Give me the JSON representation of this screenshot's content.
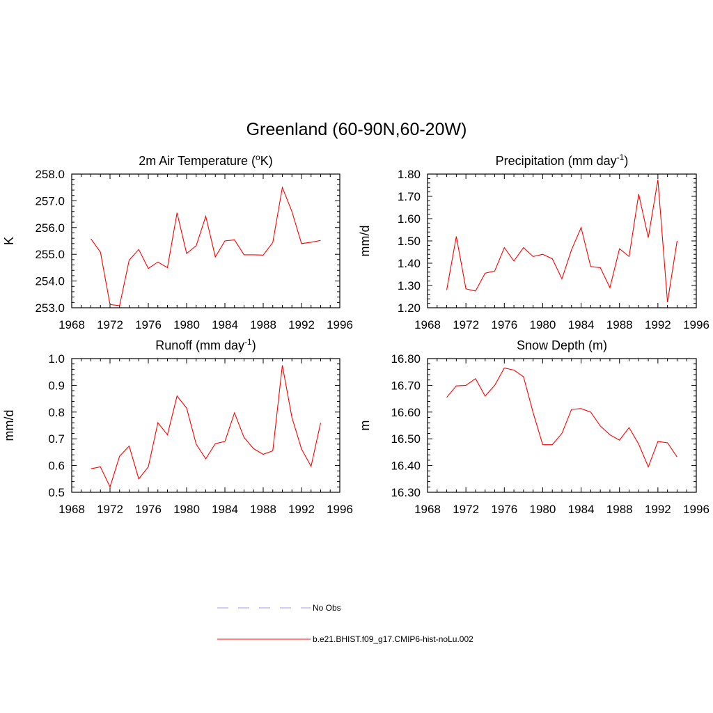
{
  "figure": {
    "title": "Greenland (60-90N,60-20W)"
  },
  "legend": {
    "items": [
      {
        "label": "No Obs",
        "color": "#9999ff",
        "dashed": true
      },
      {
        "label": "b.e21.BHIST.f09_g17.CMIP6-hist-noLu.002",
        "color": "#ff0000",
        "dashed": false
      }
    ]
  },
  "chart_data": [
    {
      "type": "line",
      "title": "2m Air Temperature (oK)",
      "title_parts": {
        "pre": "2m Air Temperature (",
        "sup": "o",
        "post": "K)"
      },
      "ylabel": "K",
      "xlabel": "",
      "xlim": [
        1968,
        1996
      ],
      "ylim": [
        253.0,
        258.0
      ],
      "x_ticks": [
        "1968",
        "1972",
        "1976",
        "1980",
        "1984",
        "1988",
        "1992",
        "1996"
      ],
      "y_ticks": [
        "253.0",
        "254.0",
        "255.0",
        "256.0",
        "257.0",
        "258.0"
      ],
      "series": [
        {
          "color": "#ff0000",
          "x": [
            1970,
            1971,
            1972,
            1973,
            1974,
            1975,
            1976,
            1977,
            1978,
            1979,
            1980,
            1981,
            1982,
            1983,
            1984,
            1985,
            1986,
            1987,
            1988,
            1989,
            1990,
            1991,
            1992,
            1993,
            1994
          ],
          "y": [
            255.58,
            255.08,
            253.12,
            253.08,
            254.78,
            255.18,
            254.47,
            254.71,
            254.5,
            256.55,
            255.03,
            255.32,
            256.42,
            254.9,
            255.5,
            255.54,
            254.98,
            254.98,
            254.97,
            255.44,
            257.5,
            256.6,
            255.4,
            255.45,
            255.52
          ]
        }
      ]
    },
    {
      "type": "line",
      "title": "Precipitation (mm day-1)",
      "title_parts": {
        "pre": "Precipitation (mm day",
        "sup": "-1",
        "post": ")"
      },
      "ylabel": "mm/d",
      "xlabel": "",
      "xlim": [
        1968,
        1996
      ],
      "ylim": [
        1.2,
        1.8
      ],
      "x_ticks": [
        "1968",
        "1972",
        "1976",
        "1980",
        "1984",
        "1988",
        "1992",
        "1996"
      ],
      "y_ticks": [
        "1.20",
        "1.30",
        "1.40",
        "1.50",
        "1.60",
        "1.70",
        "1.80"
      ],
      "series": [
        {
          "color": "#ff0000",
          "x": [
            1970,
            1971,
            1972,
            1973,
            1974,
            1975,
            1976,
            1977,
            1978,
            1979,
            1980,
            1981,
            1982,
            1983,
            1984,
            1985,
            1986,
            1987,
            1988,
            1989,
            1990,
            1991,
            1992,
            1993,
            1994
          ],
          "y": [
            1.28,
            1.52,
            1.285,
            1.275,
            1.355,
            1.365,
            1.47,
            1.41,
            1.47,
            1.43,
            1.44,
            1.42,
            1.33,
            1.46,
            1.56,
            1.385,
            1.38,
            1.29,
            1.465,
            1.43,
            1.71,
            1.515,
            1.775,
            1.225,
            1.5
          ]
        }
      ]
    },
    {
      "type": "line",
      "title": "Runoff (mm day-1)",
      "title_parts": {
        "pre": "Runoff (mm day",
        "sup": "-1",
        "post": ")"
      },
      "ylabel": "mm/d",
      "xlabel": "",
      "xlim": [
        1968,
        1996
      ],
      "ylim": [
        0.5,
        1.0
      ],
      "x_ticks": [
        "1968",
        "1972",
        "1976",
        "1980",
        "1984",
        "1988",
        "1992",
        "1996"
      ],
      "y_ticks": [
        "0.5",
        "0.6",
        "0.7",
        "0.8",
        "0.9",
        "1.0"
      ],
      "series": [
        {
          "color": "#ff0000",
          "x": [
            1970,
            1971,
            1972,
            1973,
            1974,
            1975,
            1976,
            1977,
            1978,
            1979,
            1980,
            1981,
            1982,
            1983,
            1984,
            1985,
            1986,
            1987,
            1988,
            1989,
            1990,
            1991,
            1992,
            1993,
            1994
          ],
          "y": [
            0.588,
            0.595,
            0.52,
            0.635,
            0.673,
            0.55,
            0.595,
            0.76,
            0.715,
            0.86,
            0.815,
            0.68,
            0.625,
            0.682,
            0.69,
            0.797,
            0.705,
            0.663,
            0.642,
            0.655,
            0.975,
            0.78,
            0.662,
            0.597,
            0.76
          ]
        }
      ]
    },
    {
      "type": "line",
      "title": "Snow Depth (m)",
      "title_parts": {
        "pre": "Snow Depth (m)",
        "sup": "",
        "post": ""
      },
      "ylabel": "m",
      "xlabel": "",
      "xlim": [
        1968,
        1996
      ],
      "ylim": [
        16.3,
        16.8
      ],
      "x_ticks": [
        "1968",
        "1972",
        "1976",
        "1980",
        "1984",
        "1988",
        "1992",
        "1996"
      ],
      "y_ticks": [
        "16.30",
        "16.40",
        "16.50",
        "16.60",
        "16.70",
        "16.80"
      ],
      "series": [
        {
          "color": "#ff0000",
          "x": [
            1970,
            1971,
            1972,
            1973,
            1974,
            1975,
            1976,
            1977,
            1978,
            1979,
            1980,
            1981,
            1982,
            1983,
            1984,
            1985,
            1986,
            1987,
            1988,
            1989,
            1990,
            1991,
            1992,
            1993,
            1994
          ],
          "y": [
            16.655,
            16.698,
            16.7,
            16.725,
            16.66,
            16.7,
            16.765,
            16.757,
            16.732,
            16.598,
            16.478,
            16.478,
            16.52,
            16.61,
            16.613,
            16.6,
            16.548,
            16.515,
            16.495,
            16.542,
            16.48,
            16.395,
            16.49,
            16.485,
            16.432
          ]
        }
      ]
    }
  ]
}
